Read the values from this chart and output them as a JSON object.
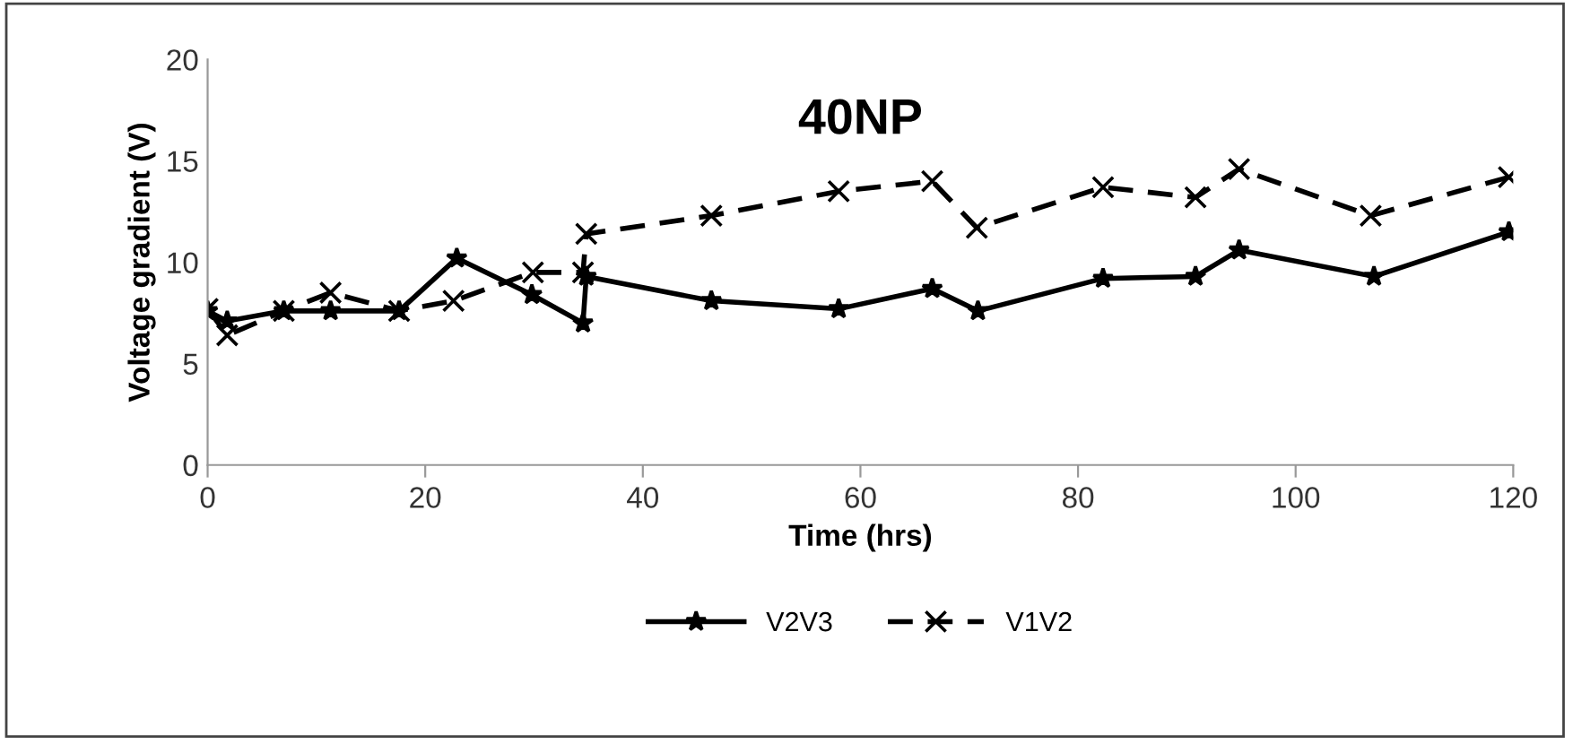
{
  "chart_data": {
    "type": "line",
    "title": "40NP",
    "xlabel": "Time (hrs)",
    "ylabel": "Voltage gradient (V)",
    "xlim": [
      0,
      120
    ],
    "xticks": [
      0,
      20,
      40,
      60,
      80,
      100,
      120
    ],
    "ylim": [
      0,
      20
    ],
    "yticks": [
      0,
      5,
      10,
      15,
      20
    ],
    "grid": false,
    "legend": "bottom",
    "series": [
      {
        "name": "V2V3",
        "color": "#000000",
        "marker": "star",
        "line_style": "solid",
        "x": [
          0,
          1.8,
          7,
          11.3,
          17.6,
          22.9,
          29.8,
          34.5,
          34.8,
          46.3,
          58,
          66.6,
          70.8,
          82.3,
          90.8,
          94.8,
          107.2,
          119.6
        ],
        "values": [
          7.6,
          7.1,
          7.6,
          7.6,
          7.6,
          10.2,
          8.4,
          7.0,
          9.3,
          8.1,
          7.7,
          8.7,
          7.6,
          9.2,
          9.3,
          10.6,
          9.3,
          11.5
        ]
      },
      {
        "name": "V1V2",
        "color": "#000000",
        "marker": "cross",
        "line_style": "dashed",
        "x": [
          0,
          1.8,
          7,
          11.3,
          17.6,
          22.6,
          29.9,
          34.5,
          34.8,
          46.3,
          58,
          66.6,
          70.7,
          82.3,
          90.8,
          94.8,
          106.9,
          119.6
        ],
        "values": [
          7.7,
          6.4,
          7.6,
          8.5,
          7.6,
          8.1,
          9.5,
          9.5,
          11.4,
          12.3,
          13.5,
          14.0,
          11.7,
          13.7,
          13.2,
          14.6,
          12.3,
          14.2
        ]
      }
    ]
  }
}
